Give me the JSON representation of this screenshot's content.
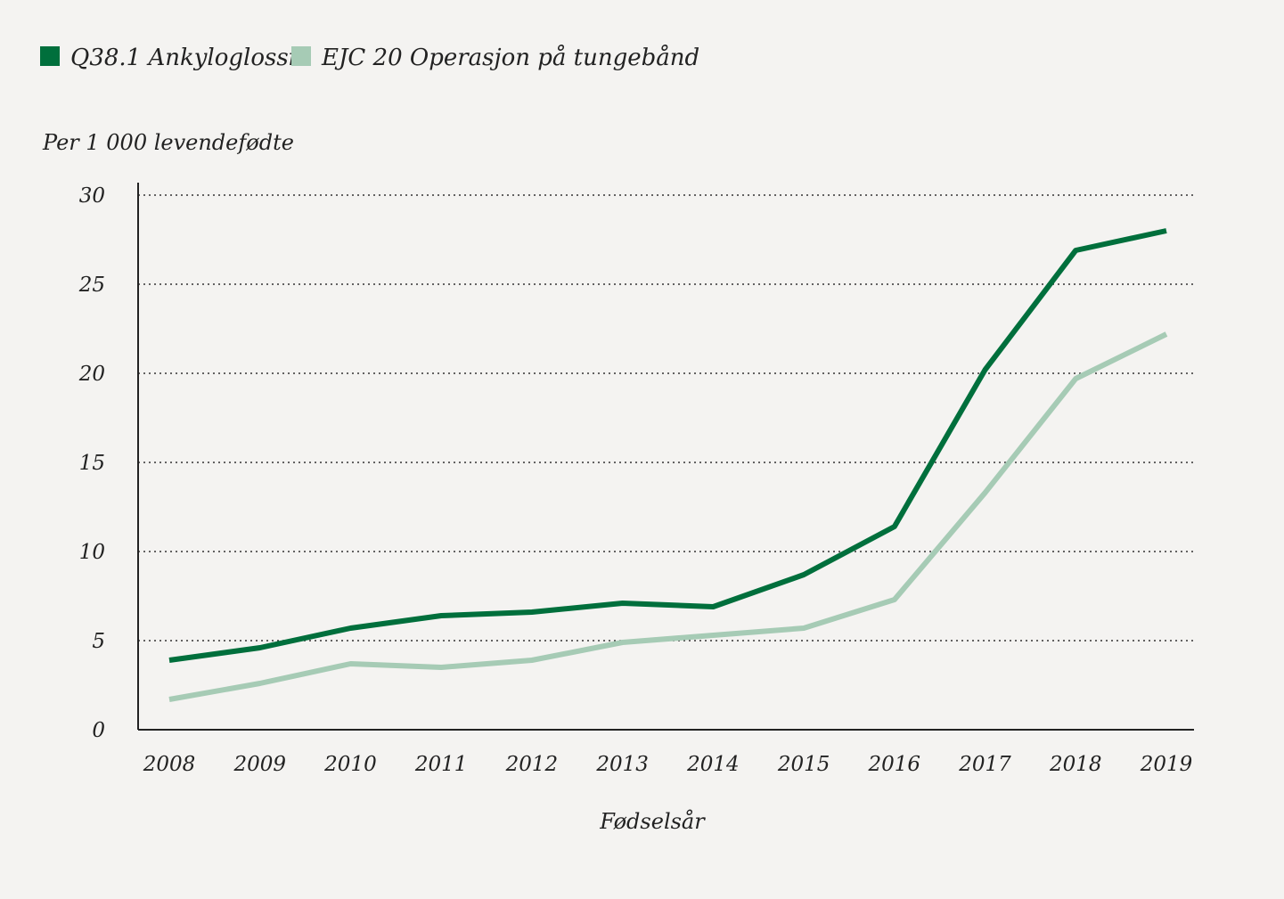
{
  "chart_data": {
    "type": "line",
    "title": "",
    "ylabel": "Per 1 000 levendefødte",
    "xlabel": "Fødselsår",
    "ylim": [
      0,
      30
    ],
    "yticks": [
      0,
      5,
      10,
      15,
      20,
      25,
      30
    ],
    "grid": "horizontal dotted",
    "legend_position": "top-left",
    "x": [
      "2008",
      "2009",
      "2010",
      "2011",
      "2012",
      "2013",
      "2014",
      "2015",
      "2016",
      "2017",
      "2018",
      "2019"
    ],
    "series": [
      {
        "name": "Q38.1 Ankyloglossi",
        "color": "#006f3c",
        "values": [
          3.9,
          4.6,
          5.7,
          6.4,
          6.6,
          7.1,
          6.9,
          8.7,
          11.4,
          20.2,
          26.9,
          28.0
        ]
      },
      {
        "name": "EJC 20 Operasjon på tungebånd",
        "color": "#a6cbb5",
        "values": [
          1.7,
          2.6,
          3.7,
          3.5,
          3.9,
          4.9,
          5.3,
          5.7,
          7.3,
          13.3,
          19.7,
          22.2
        ]
      }
    ]
  }
}
